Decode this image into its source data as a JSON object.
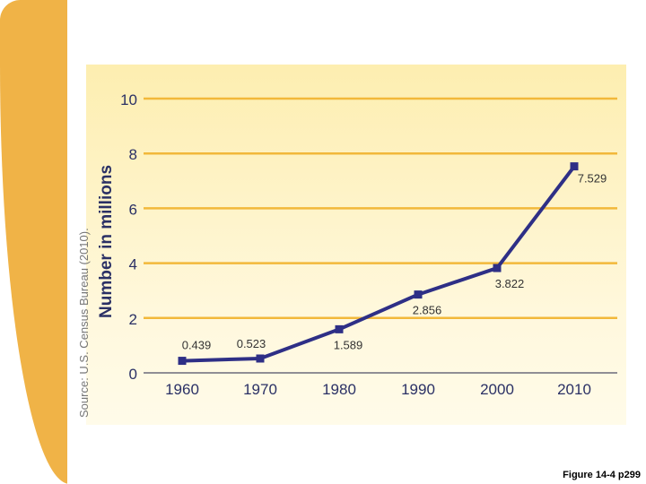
{
  "caption": "Figure 14-4 p299",
  "source": "Source: U.S. Census Bureau (2010).",
  "colors": {
    "band": "#f0b347",
    "grid": "#f2b83a",
    "line": "#2e2f86",
    "text": "#2a3065",
    "label": "#333333"
  },
  "chart_data": {
    "type": "line",
    "title": "",
    "xlabel": "",
    "ylabel": "Number in millions",
    "categories": [
      "1960",
      "1970",
      "1980",
      "1990",
      "2000",
      "2010"
    ],
    "series": [
      {
        "name": "Number in millions",
        "values": [
          0.439,
          0.523,
          1.589,
          2.856,
          3.822,
          7.529
        ]
      }
    ],
    "value_labels": [
      "0.439",
      "0.523",
      "1.589",
      "2.856",
      "3.822",
      "7.529"
    ],
    "ylim": [
      0,
      10
    ],
    "yticks": [
      0,
      2,
      4,
      6,
      8,
      10
    ],
    "grid": true
  }
}
